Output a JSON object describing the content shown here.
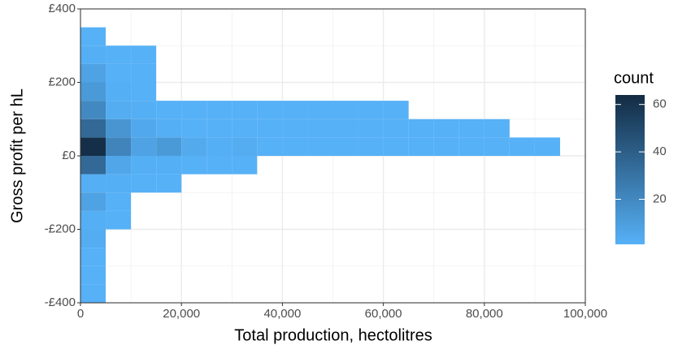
{
  "chart_data": {
    "type": "bin2d",
    "xlabel": "Total production, hectolitres",
    "ylabel": "Gross profit per hL",
    "legend_title": "count",
    "xlim": [
      0,
      100000
    ],
    "xticks": [
      0,
      {
        "value": 20000,
        "label": "20,000"
      },
      {
        "value": 40000,
        "label": "40,000"
      },
      {
        "value": 60000,
        "label": "60,000"
      },
      {
        "value": 80000,
        "label": "80,000"
      },
      {
        "value": 100000,
        "label": "100,000"
      }
    ],
    "ylim": [
      -400,
      400
    ],
    "yticks": [
      {
        "value": -400,
        "label": "-£400"
      },
      {
        "value": -200,
        "label": "-£200"
      },
      {
        "value": 0,
        "label": "£0"
      },
      {
        "value": 200,
        "label": "£200"
      },
      {
        "value": 400,
        "label": "£400"
      }
    ],
    "binwidth": [
      5000,
      50
    ],
    "fill_lim": [
      1,
      64
    ],
    "fill_ticks": [
      20,
      40,
      60
    ],
    "colors": [
      "#56B1F7",
      "#132B43"
    ],
    "grid": true,
    "cells": {
      "x": [
        0,
        0,
        0,
        0,
        0,
        0,
        0,
        0,
        0,
        0,
        0,
        0,
        0,
        0,
        0,
        5000,
        5000,
        5000,
        5000,
        5000,
        5000,
        5000,
        5000,
        5000,
        5000,
        10000,
        10000,
        10000,
        10000,
        10000,
        10000,
        10000,
        10000,
        15000,
        15000,
        15000,
        15000,
        15000,
        20000,
        20000,
        20000,
        20000,
        25000,
        25000,
        25000,
        25000,
        30000,
        30000,
        30000,
        30000,
        35000,
        35000,
        35000,
        40000,
        40000,
        40000,
        45000,
        45000,
        45000,
        50000,
        50000,
        50000,
        55000,
        55000,
        55000,
        60000,
        60000,
        60000,
        65000,
        65000,
        70000,
        70000,
        75000,
        75000,
        80000,
        80000,
        85000,
        90000
      ],
      "y": [
        -400,
        -350,
        -300,
        -250,
        -200,
        -150,
        -100,
        -50,
        0,
        50,
        100,
        150,
        200,
        250,
        300,
        -200,
        -150,
        -100,
        -50,
        0,
        50,
        100,
        150,
        200,
        250,
        -100,
        -50,
        0,
        50,
        100,
        150,
        200,
        250,
        -100,
        -50,
        0,
        50,
        100,
        -50,
        0,
        50,
        100,
        -50,
        0,
        50,
        100,
        -50,
        0,
        50,
        100,
        0,
        50,
        100,
        0,
        50,
        100,
        0,
        50,
        100,
        0,
        50,
        100,
        0,
        50,
        100,
        0,
        50,
        100,
        0,
        50,
        0,
        50,
        0,
        50,
        0,
        50,
        0,
        0
      ],
      "values": [
        1,
        1,
        1,
        3,
        2,
        8,
        2,
        35,
        62,
        35,
        20,
        12,
        8,
        2,
        1,
        1,
        1,
        2,
        6,
        22,
        14,
        3,
        2,
        1,
        1,
        1,
        2,
        8,
        5,
        2,
        1,
        1,
        1,
        1,
        2,
        12,
        2,
        1,
        1,
        4,
        1,
        1,
        1,
        2,
        1,
        1,
        1,
        3,
        1,
        1,
        1,
        1,
        1,
        1,
        1,
        1,
        1,
        1,
        1,
        1,
        1,
        1,
        1,
        1,
        1,
        1,
        1,
        1,
        1,
        1,
        1,
        1,
        1,
        1,
        1,
        1,
        1,
        1
      ]
    }
  }
}
